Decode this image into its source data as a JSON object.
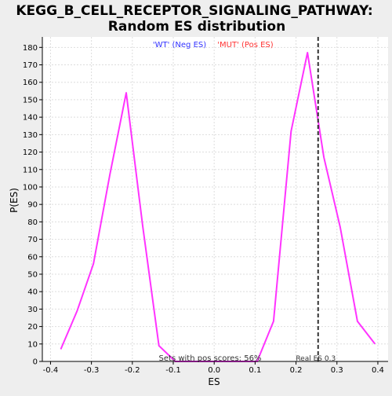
{
  "chart_data": {
    "type": "line",
    "title": "KEGG_B_CELL_RECEPTOR_SIGNALING_PATHWAY:\nRandom ES distribution",
    "title_lines": [
      "KEGG_B_CELL_RECEPTOR_SIGNALING_PATHWAY:",
      "Random ES distribution"
    ],
    "xlabel": "ES",
    "ylabel": "P(ES)",
    "xlim": [
      -0.42,
      0.425
    ],
    "ylim": [
      0,
      186
    ],
    "x_ticks": [
      -0.4,
      -0.3,
      -0.2,
      -0.1,
      0.0,
      0.1,
      0.2,
      0.3,
      0.4
    ],
    "x_tick_labels": [
      "-0.4",
      "-0.3",
      "-0.2",
      "-0.1",
      "0.0",
      "0.1",
      "0.2",
      "0.3",
      "0.4"
    ],
    "y_ticks": [
      0,
      10,
      20,
      30,
      40,
      50,
      60,
      70,
      80,
      90,
      100,
      110,
      120,
      130,
      140,
      150,
      160,
      170,
      180
    ],
    "grid": true,
    "legend": {
      "placement": "top-center",
      "entries": [
        {
          "label": "'WT' (Neg ES)",
          "color": "#3333ff"
        },
        {
          "label": "'MUT' (Pos ES)",
          "color": "#ff3333"
        }
      ]
    },
    "series": [
      {
        "color": "#ff33ff",
        "x": [
          -0.375,
          -0.335,
          -0.295,
          -0.255,
          -0.215,
          -0.175,
          -0.135,
          -0.095,
          -0.055,
          -0.015,
          0.025,
          0.065,
          0.105,
          0.145,
          0.188,
          0.228,
          0.268,
          0.308,
          0.35,
          0.393
        ],
        "y": [
          7,
          29,
          56,
          107,
          154,
          78,
          9,
          0,
          0,
          0,
          0,
          0,
          0,
          23,
          132,
          177,
          117,
          77,
          23,
          10
        ]
      }
    ],
    "reference_line": {
      "x": 0.254,
      "label": "Real ES 0.3",
      "style": "dashed",
      "color": "#333333"
    },
    "annotations": [
      {
        "text": "Sets with pos scores: 56%"
      }
    ]
  },
  "colors": {
    "background": "#eeeeee",
    "plot_background": "#ffffff",
    "grid": "#dddddd",
    "axis": "#000000"
  }
}
